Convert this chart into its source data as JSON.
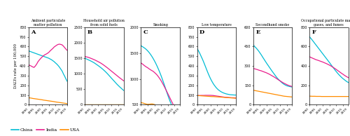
{
  "years": [
    1990,
    1991,
    1992,
    1993,
    1994,
    1995,
    1996,
    1997,
    1998,
    1999,
    2000,
    2001,
    2002,
    2003,
    2004,
    2005,
    2006,
    2007,
    2008,
    2009,
    2010,
    2011,
    2012,
    2013,
    2014,
    2015,
    2016,
    2017,
    2018,
    2019
  ],
  "china_A": [
    555,
    550,
    545,
    540,
    535,
    530,
    525,
    520,
    515,
    510,
    505,
    500,
    495,
    490,
    485,
    480,
    472,
    465,
    455,
    445,
    432,
    420,
    405,
    388,
    368,
    348,
    318,
    292,
    262,
    238
  ],
  "india_A": [
    410,
    405,
    398,
    390,
    385,
    400,
    420,
    445,
    462,
    478,
    492,
    505,
    515,
    522,
    530,
    540,
    555,
    568,
    580,
    595,
    605,
    615,
    622,
    625,
    622,
    618,
    605,
    588,
    572,
    558
  ],
  "usa_A": [
    72,
    70,
    68,
    65,
    63,
    61,
    59,
    57,
    55,
    53,
    51,
    48,
    46,
    44,
    42,
    40,
    38,
    36,
    34,
    32,
    29,
    27,
    25,
    23,
    21,
    19,
    17,
    15,
    13,
    12
  ],
  "china_B": [
    1500,
    1480,
    1460,
    1440,
    1420,
    1398,
    1375,
    1350,
    1320,
    1290,
    1260,
    1228,
    1195,
    1160,
    1122,
    1082,
    1040,
    995,
    948,
    900,
    852,
    805,
    758,
    710,
    663,
    620,
    578,
    540,
    500,
    462
  ],
  "india_B": [
    1555,
    1545,
    1535,
    1522,
    1505,
    1488,
    1470,
    1452,
    1432,
    1410,
    1388,
    1365,
    1340,
    1312,
    1282,
    1250,
    1218,
    1185,
    1150,
    1115,
    1080,
    1045,
    1010,
    975,
    940,
    905,
    870,
    838,
    805,
    772
  ],
  "usa_B": [
    0.3,
    0.29,
    0.28,
    0.27,
    0.26,
    0.25,
    0.24,
    0.23,
    0.22,
    0.21,
    0.2,
    0.2,
    0.19,
    0.18,
    0.17,
    0.17,
    0.16,
    0.15,
    0.15,
    0.14,
    0.14,
    0.13,
    0.13,
    0.12,
    0.12,
    0.11,
    0.11,
    0.1,
    0.1,
    0.1
  ],
  "china_C": [
    1640,
    1625,
    1608,
    1590,
    1568,
    1542,
    1512,
    1478,
    1440,
    1398,
    1352,
    1302,
    1248,
    1190,
    1128,
    1062,
    992,
    918,
    842,
    765,
    688,
    615,
    548,
    486,
    430,
    380,
    338,
    302,
    272,
    248
  ],
  "india_C": [
    1305,
    1290,
    1268,
    1248,
    1230,
    1215,
    1195,
    1178,
    1162,
    1148,
    1125,
    1102,
    1075,
    1042,
    1005,
    965,
    920,
    872,
    822,
    770,
    718,
    665,
    612,
    558,
    508,
    460,
    415,
    375,
    340,
    310
  ],
  "usa_C": [
    540,
    535,
    528,
    520,
    512,
    508,
    510,
    512,
    515,
    512,
    505,
    495,
    482,
    465,
    445,
    422,
    398,
    372,
    345,
    318,
    292,
    268,
    245,
    225,
    208,
    192,
    178,
    165,
    154,
    144
  ],
  "china_D": [
    578,
    555,
    528,
    498,
    468,
    435,
    400,
    365,
    330,
    298,
    268,
    242,
    218,
    198,
    180,
    165,
    152,
    142,
    133,
    126,
    120,
    115,
    111,
    108,
    105,
    103,
    102,
    101,
    100,
    100
  ],
  "india_D": [
    95,
    95,
    95,
    96,
    96,
    96,
    97,
    97,
    97,
    97,
    97,
    96,
    95,
    93,
    91,
    89,
    87,
    85,
    83,
    81,
    79,
    77,
    76,
    75,
    74,
    73,
    72,
    72,
    71,
    70
  ],
  "usa_D": [
    95,
    94,
    93,
    92,
    91,
    90,
    89,
    88,
    87,
    86,
    85,
    84,
    84,
    83,
    82,
    81,
    80,
    79,
    78,
    77,
    76,
    75,
    74,
    73,
    72,
    71,
    70,
    69,
    68,
    67
  ],
  "china_E": [
    462,
    450,
    440,
    428,
    415,
    400,
    385,
    368,
    352,
    336,
    320,
    305,
    290,
    275,
    260,
    246,
    232,
    218,
    205,
    194,
    184,
    174,
    165,
    158,
    152,
    147,
    144,
    141,
    139,
    137
  ],
  "india_E": [
    280,
    278,
    275,
    272,
    268,
    265,
    262,
    258,
    254,
    250,
    246,
    241,
    236,
    230,
    224,
    218,
    212,
    205,
    198,
    191,
    185,
    178,
    172,
    166,
    161,
    156,
    151,
    147,
    144,
    141
  ],
  "usa_E": [
    112,
    110,
    108,
    106,
    104,
    102,
    100,
    98,
    96,
    94,
    92,
    90,
    88,
    86,
    84,
    82,
    80,
    78,
    76,
    74,
    72,
    70,
    68,
    66,
    65,
    64,
    63,
    62,
    61,
    60
  ],
  "china_F": [
    700,
    685,
    668,
    650,
    632,
    614,
    596,
    578,
    560,
    542,
    524,
    506,
    488,
    470,
    452,
    434,
    415,
    396,
    378,
    360,
    342,
    326,
    310,
    296,
    282,
    270,
    259,
    248,
    238,
    230
  ],
  "india_F": [
    495,
    488,
    482,
    476,
    470,
    464,
    460,
    455,
    450,
    445,
    440,
    434,
    428,
    422,
    415,
    408,
    400,
    392,
    383,
    374,
    364,
    354,
    344,
    334,
    324,
    315,
    305,
    296,
    288,
    280
  ],
  "usa_F": [
    88,
    88,
    87,
    87,
    87,
    86,
    86,
    86,
    86,
    85,
    85,
    85,
    85,
    85,
    85,
    85,
    85,
    85,
    85,
    85,
    85,
    85,
    85,
    85,
    85,
    85,
    85,
    85,
    85,
    85
  ],
  "color_china": "#00BCD4",
  "color_india": "#E91E8C",
  "color_usa": "#FF8C00",
  "titles": [
    "Ambient particulate\nmatter pollution",
    "Household air pollution\nfrom solid fuels",
    "Smoking",
    "Low temperature",
    "Secondhand smoke",
    "Occupational particulate matter,\ngases, and fumes"
  ],
  "panel_labels": [
    "A",
    "B",
    "C",
    "D",
    "E",
    "F"
  ],
  "ylim_A": [
    0,
    800
  ],
  "yticks_A": [
    0,
    100,
    200,
    300,
    400,
    500,
    600,
    700,
    800
  ],
  "ylim_B": [
    0,
    2500
  ],
  "yticks_B": [
    0,
    500,
    1000,
    1500,
    2000,
    2500
  ],
  "ylim_C": [
    500,
    2000
  ],
  "yticks_C": [
    500,
    1000,
    1500,
    2000
  ],
  "ylim_D": [
    0,
    800
  ],
  "yticks_D": [
    0,
    100,
    200,
    300,
    400,
    500,
    600,
    700,
    800
  ],
  "ylim_E": [
    0,
    600
  ],
  "yticks_E": [
    0,
    150,
    300,
    450,
    600
  ],
  "ylim_F": [
    0,
    800
  ],
  "yticks_F": [
    0,
    200,
    400,
    600,
    800
  ],
  "ylabel": "DALYs rate per 100,000"
}
